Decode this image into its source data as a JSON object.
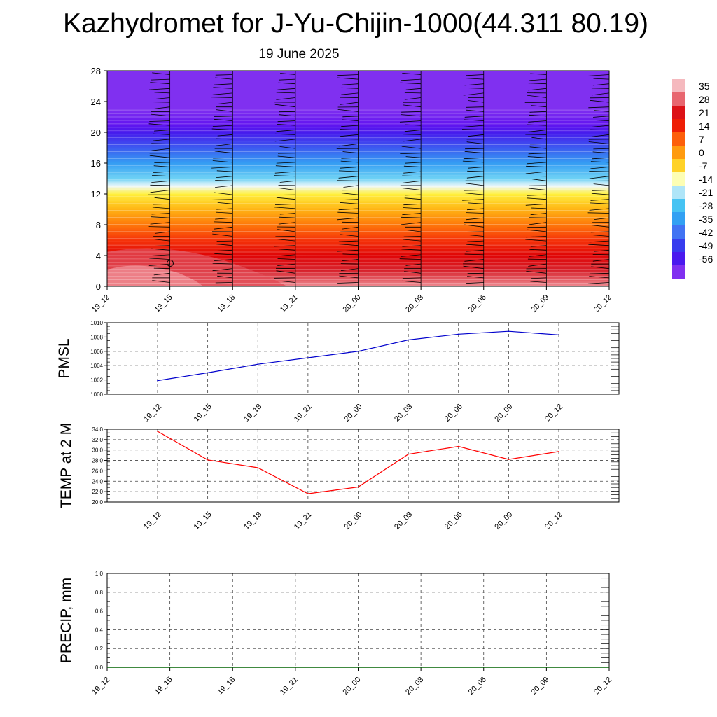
{
  "header": {
    "title": "Kazhydromet for J-Yu-Chijin-1000(44.311 80.19)",
    "subtitle": "19 June 2025"
  },
  "chart_data": [
    {
      "type": "heatmap",
      "title": "",
      "xlabel": "",
      "ylabel": "",
      "x_ticks": [
        "19_12",
        "19_15",
        "19_18",
        "19_21",
        "20_00",
        "20_03",
        "20_06",
        "20_09",
        "20_12"
      ],
      "y_ticks": [
        0,
        4,
        8,
        12,
        16,
        20,
        24,
        28
      ],
      "ylim": [
        0,
        28
      ],
      "colorbar_ticks": [
        35,
        28,
        21,
        14,
        7,
        0,
        -7,
        -14,
        -21,
        -28,
        -35,
        -42,
        -49,
        -56
      ],
      "temperature_by_level": [
        {
          "level": 0,
          "value": 33
        },
        {
          "level": 2,
          "value": 28
        },
        {
          "level": 4,
          "value": 22
        },
        {
          "level": 6,
          "value": 15
        },
        {
          "level": 8,
          "value": 8
        },
        {
          "level": 10,
          "value": 0
        },
        {
          "level": 12,
          "value": -7
        },
        {
          "level": 13,
          "value": -14
        },
        {
          "level": 14,
          "value": -21
        },
        {
          "level": 16,
          "value": -32
        },
        {
          "level": 18,
          "value": -42
        },
        {
          "level": 20,
          "value": -52
        },
        {
          "level": 21,
          "value": -56
        },
        {
          "level": 23,
          "value": -60
        },
        {
          "level": 28,
          "value": -60
        }
      ],
      "wind_barbs": "present"
    },
    {
      "type": "line",
      "ylabel": "PMSL",
      "x": [
        "19_12",
        "19_15",
        "19_18",
        "19_21",
        "20_00",
        "20_03",
        "20_06",
        "20_09",
        "20_12"
      ],
      "series": [
        {
          "values": [
            1001.9,
            1003.0,
            1004.2,
            1005.1,
            1006.0,
            1007.6,
            1008.4,
            1008.8,
            1008.3
          ],
          "color": "#0000cc"
        }
      ],
      "y_ticks": [
        "1000",
        "1002",
        "1004",
        "1006",
        "1008",
        "1010"
      ],
      "ylim": [
        1000,
        1010
      ],
      "grid": true
    },
    {
      "type": "line",
      "ylabel": "TEMP at 2 M",
      "x": [
        "19_12",
        "19_15",
        "19_18",
        "19_21",
        "20_00",
        "20_03",
        "20_06",
        "20_09",
        "20_12"
      ],
      "series": [
        {
          "values": [
            33.6,
            28.1,
            26.6,
            21.6,
            22.9,
            29.2,
            30.7,
            28.2,
            29.7
          ],
          "color": "#ff0000"
        }
      ],
      "y_ticks": [
        "20.0",
        "22.0",
        "24.0",
        "26.0",
        "28.0",
        "30.0",
        "32.0",
        "34.0"
      ],
      "ylim": [
        20,
        34
      ],
      "grid": true
    },
    {
      "type": "line",
      "ylabel": "PRECIP, mm",
      "x": [
        "19_12",
        "19_15",
        "19_18",
        "19_21",
        "20_00",
        "20_03",
        "20_06",
        "20_09",
        "20_12"
      ],
      "series": [
        {
          "values": [
            0,
            0,
            0,
            0,
            0,
            0,
            0,
            0,
            0
          ],
          "color": "#006400"
        }
      ],
      "y_ticks": [
        "0.0",
        "0.2",
        "0.4",
        "0.6",
        "0.8",
        "1.0"
      ],
      "ylim": [
        0,
        1
      ],
      "grid": true
    }
  ]
}
